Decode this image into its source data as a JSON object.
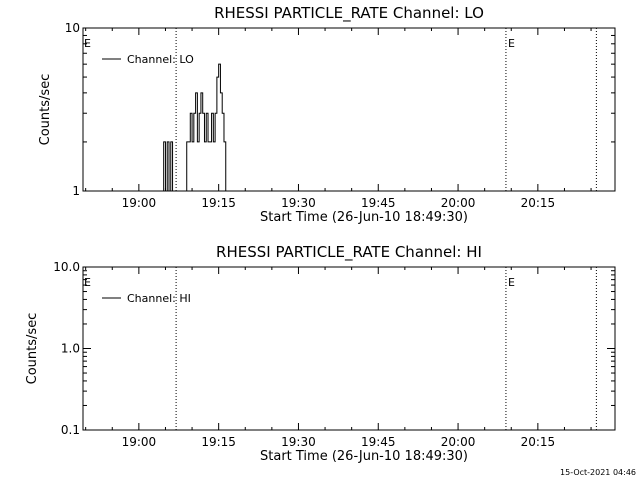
{
  "chart_data": [
    {
      "type": "line",
      "title": "RHESSI PARTICLE_RATE Channel: LO",
      "xlabel": "Start Time (26-Jun-10 18:49:30)",
      "ylabel": "Counts/sec",
      "y_scale": "log",
      "ylim": [
        1,
        10
      ],
      "xlim": [
        "18:49:30",
        "20:29:30"
      ],
      "x_ticks": [
        "19:00",
        "19:15",
        "19:30",
        "19:45",
        "20:00",
        "20:15"
      ],
      "y_ticks": [
        {
          "value": 1,
          "label": "1"
        },
        {
          "value": 10,
          "label": "10"
        }
      ],
      "vlines": [
        {
          "x": "19:07:00",
          "label": ""
        },
        {
          "x": "20:09:00",
          "label": "E"
        },
        {
          "x": "20:26:00",
          "label": ""
        }
      ],
      "edge_label": "E",
      "legend": {
        "position": "top-left",
        "entries": [
          "Channel: LO"
        ]
      },
      "series": [
        {
          "name": "Channel: LO",
          "x": [
            "19:04:20",
            "19:04:40",
            "19:05:00",
            "19:05:20",
            "19:05:40",
            "19:06:00",
            "19:06:20",
            "19:06:40",
            "19:07:00",
            "19:08:00",
            "19:08:40",
            "19:09:00",
            "19:09:20",
            "19:09:40",
            "19:10:00",
            "19:10:20",
            "19:10:40",
            "19:11:00",
            "19:11:20",
            "19:11:40",
            "19:12:00",
            "19:12:20",
            "19:12:40",
            "19:13:00",
            "19:13:20",
            "19:13:40",
            "19:14:00",
            "19:14:20",
            "19:14:40",
            "19:15:00",
            "19:15:20",
            "19:15:40",
            "19:16:00",
            "19:16:20",
            "19:16:40"
          ],
          "values": [
            1,
            2,
            1,
            2,
            1,
            2,
            1,
            1,
            1,
            1,
            1,
            2,
            2,
            3,
            2,
            3,
            4,
            2,
            3,
            4,
            3,
            2,
            3,
            2,
            2,
            3,
            2,
            3,
            5,
            6,
            4,
            3,
            2,
            1,
            1
          ]
        }
      ]
    },
    {
      "type": "line",
      "title": "RHESSI PARTICLE_RATE Channel: HI",
      "xlabel": "Start Time (26-Jun-10 18:49:30)",
      "ylabel": "Counts/sec",
      "y_scale": "log",
      "ylim": [
        0.1,
        10
      ],
      "xlim": [
        "18:49:30",
        "20:29:30"
      ],
      "x_ticks": [
        "19:00",
        "19:15",
        "19:30",
        "19:45",
        "20:00",
        "20:15"
      ],
      "y_ticks": [
        {
          "value": 0.1,
          "label": "0.1"
        },
        {
          "value": 1,
          "label": "1.0"
        },
        {
          "value": 10,
          "label": "10.0"
        }
      ],
      "vlines": [
        {
          "x": "19:07:00",
          "label": ""
        },
        {
          "x": "20:09:00",
          "label": "E"
        },
        {
          "x": "20:26:00",
          "label": ""
        }
      ],
      "edge_label": "E",
      "legend": {
        "position": "top-left",
        "entries": [
          "Channel: HI"
        ]
      },
      "series": [
        {
          "name": "Channel: HI",
          "x": [],
          "values": []
        }
      ]
    }
  ],
  "timestamp": "15-Oct-2021 04:46",
  "colors": {
    "background": "#ffffff",
    "ink": "#000000"
  }
}
